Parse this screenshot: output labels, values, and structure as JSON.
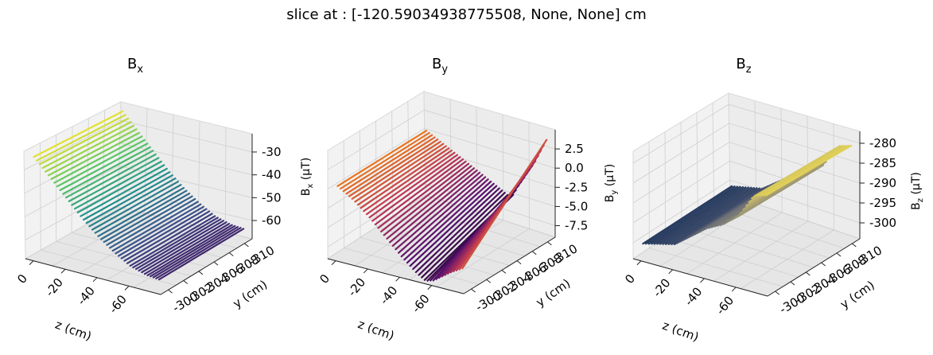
{
  "suptitle": "slice at : [-120.59034938775508, None, None] cm",
  "chart_data": [
    {
      "type": "surface",
      "title_main": "B",
      "title_sub": "x",
      "xlabel": "z (cm)",
      "ylabel": "y (cm)",
      "zlabel_main": "B",
      "zlabel_sub": "x",
      "zlabel_unit": "(μT)",
      "colormap": "viridis",
      "x_ticks": [
        "0",
        "-20",
        "-40",
        "-60"
      ],
      "y_ticks": [
        "-300",
        "-302",
        "-304",
        "-306",
        "-308",
        "-310"
      ],
      "z_ticks": [
        "-30",
        "-40",
        "-50",
        "-60"
      ],
      "z_tick_values": [
        -30,
        -40,
        -50,
        -60
      ],
      "x_range": [
        5,
        -80
      ],
      "y_range": [
        -299,
        -311
      ],
      "z_range": [
        -68,
        -22
      ],
      "grid": true,
      "surface_profile": {
        "z_cm": [
          0,
          -10,
          -20,
          -30,
          -40,
          -50,
          -60,
          -70,
          -78
        ],
        "value": [
          -24,
          -31,
          -38,
          -45,
          -51,
          -56,
          -60,
          -62,
          -62.5
        ]
      }
    },
    {
      "type": "surface",
      "title_main": "B",
      "title_sub": "y",
      "xlabel": "z (cm)",
      "ylabel": "y (cm)",
      "zlabel_main": "B",
      "zlabel_sub": "y",
      "zlabel_unit": "(μT)",
      "colormap": "inferno",
      "x_ticks": [
        "0",
        "-20",
        "-40",
        "-60"
      ],
      "y_ticks": [
        "-300",
        "-302",
        "-304",
        "-306",
        "-308",
        "-310"
      ],
      "z_ticks": [
        "2.5",
        "0.0",
        "-2.5",
        "-5.0",
        "-7.5"
      ],
      "z_tick_values": [
        2.5,
        0.0,
        -2.5,
        -5.0,
        -7.5
      ],
      "x_range": [
        5,
        -80
      ],
      "y_range": [
        -299,
        -311
      ],
      "z_range": [
        -9,
        5
      ],
      "grid": true,
      "surface_profile": {
        "z_cm": [
          0,
          -10,
          -20,
          -30,
          -40,
          -50,
          -55,
          -60,
          -70,
          -78
        ],
        "value_at_y_min": [
          0.5,
          -0.8,
          -2.5,
          -4.5,
          -6.5,
          -8.2,
          -8.8,
          -8.5,
          -7.0,
          -6.0
        ],
        "value_at_y_max": [
          0.5,
          -0.5,
          -1.5,
          -2.5,
          -3.5,
          -4.5,
          -5.0,
          -3.0,
          0.5,
          4.0
        ]
      }
    },
    {
      "type": "surface",
      "title_main": "B",
      "title_sub": "z",
      "xlabel": "z (cm)",
      "ylabel": "y (cm)",
      "zlabel_main": "B",
      "zlabel_sub": "z",
      "zlabel_unit": "(μT)",
      "colormap": "cividis",
      "x_ticks": [
        "0",
        "-20",
        "-40",
        "-60"
      ],
      "y_ticks": [
        "-300",
        "-302",
        "-304",
        "-306",
        "-308",
        "-310"
      ],
      "z_ticks": [
        "-280",
        "-285",
        "-290",
        "-295",
        "-300"
      ],
      "z_tick_values": [
        -280,
        -285,
        -290,
        -295,
        -300
      ],
      "x_range": [
        5,
        -80
      ],
      "y_range": [
        -299,
        -311
      ],
      "z_range": [
        -304,
        -277
      ],
      "grid": true,
      "surface_profile": {
        "z_cm": [
          0,
          -10,
          -20,
          -30,
          -40,
          -50,
          -60,
          -70,
          -78
        ],
        "value": [
          -300,
          -299,
          -298,
          -295,
          -292,
          -290,
          -287,
          -281,
          -280
        ]
      }
    }
  ]
}
